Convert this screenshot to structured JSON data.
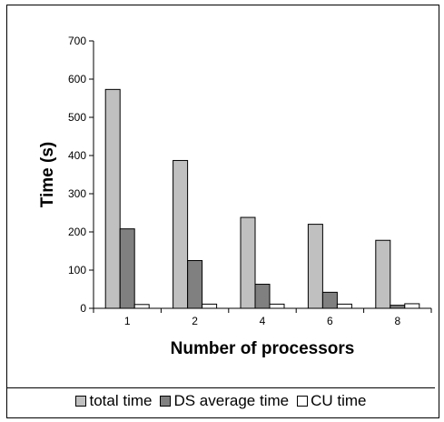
{
  "chart_data": {
    "type": "bar",
    "title": "",
    "xlabel": "Number of processors",
    "ylabel": "Time (s)",
    "categories": [
      "1",
      "2",
      "4",
      "6",
      "8"
    ],
    "ylim": [
      0,
      700
    ],
    "yticks": [
      0,
      100,
      200,
      300,
      400,
      500,
      600,
      700
    ],
    "grid": false,
    "legend_position": "bottom",
    "series": [
      {
        "name": "total time",
        "color": "#c0c0c0",
        "values": [
          573,
          387,
          238,
          220,
          178
        ]
      },
      {
        "name": "DS average time",
        "color": "#808080",
        "values": [
          208,
          125,
          63,
          42,
          8
        ]
      },
      {
        "name": "CU time",
        "color": "#ffffff",
        "values": [
          10,
          11,
          11,
          11,
          12
        ]
      }
    ]
  }
}
